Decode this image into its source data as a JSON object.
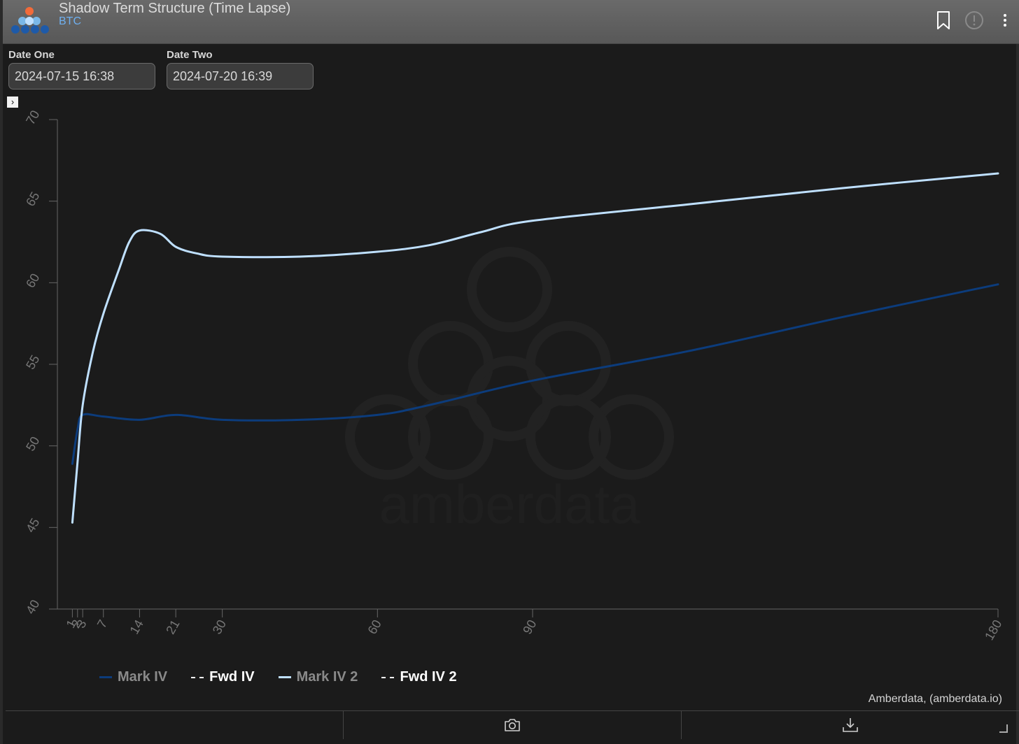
{
  "header": {
    "title": "Shadow Term Structure (Time Lapse)",
    "subtitle": "BTC"
  },
  "controls": {
    "date_one": {
      "label": "Date One",
      "value": "2024-07-15 16:38"
    },
    "date_two": {
      "label": "Date Two",
      "value": "2024-07-20 16:39"
    }
  },
  "watermark": "amberdata",
  "credit": "Amberdata, (amberdata.io)",
  "colors": {
    "mark_iv": "#0c3c7c",
    "mark_iv_2": "#bfe0ff",
    "fwd_iv": "#ffffff",
    "axis": "#666666",
    "tick_text": "#777777"
  },
  "icons": {
    "header": [
      "bookmark-icon",
      "info-icon",
      "kebab-menu-icon"
    ],
    "footer": [
      "camera-icon",
      "download-icon"
    ]
  },
  "chart_data": {
    "type": "line",
    "title": "",
    "xlabel": "",
    "ylabel": "",
    "xlim": [
      0,
      180
    ],
    "ylim": [
      40,
      70
    ],
    "x_ticks": [
      1,
      2,
      3,
      7,
      14,
      21,
      30,
      60,
      90,
      180
    ],
    "y_ticks": [
      40,
      45,
      50,
      55,
      60,
      65,
      70
    ],
    "grid": false,
    "legend_position": "bottom-left",
    "series": [
      {
        "name": "Mark IV",
        "color": "#0c3c7c",
        "style": "solid",
        "x": [
          1,
          2,
          3,
          7,
          14,
          21,
          30,
          45,
          60,
          70,
          90,
          120,
          150,
          180
        ],
        "y": [
          48.9,
          51.0,
          51.9,
          51.8,
          51.6,
          51.9,
          51.6,
          51.6,
          51.9,
          52.5,
          54.0,
          55.8,
          57.9,
          59.9
        ]
      },
      {
        "name": "Fwd IV",
        "color": "#ffffff",
        "style": "dashed",
        "x": [],
        "y": []
      },
      {
        "name": "Mark IV 2",
        "color": "#bfe0ff",
        "style": "solid",
        "x": [
          1,
          2,
          3,
          5,
          7,
          10,
          12,
          14,
          18,
          21,
          25,
          30,
          45,
          60,
          70,
          80,
          90,
          120,
          150,
          180
        ],
        "y": [
          45.3,
          49.0,
          52.5,
          55.8,
          58.1,
          60.8,
          62.5,
          63.2,
          63.0,
          62.2,
          61.8,
          61.6,
          61.6,
          61.9,
          62.3,
          63.1,
          63.8,
          64.8,
          65.8,
          66.7
        ]
      },
      {
        "name": "Fwd IV 2",
        "color": "#ffffff",
        "style": "dashed",
        "x": [],
        "y": []
      }
    ]
  }
}
